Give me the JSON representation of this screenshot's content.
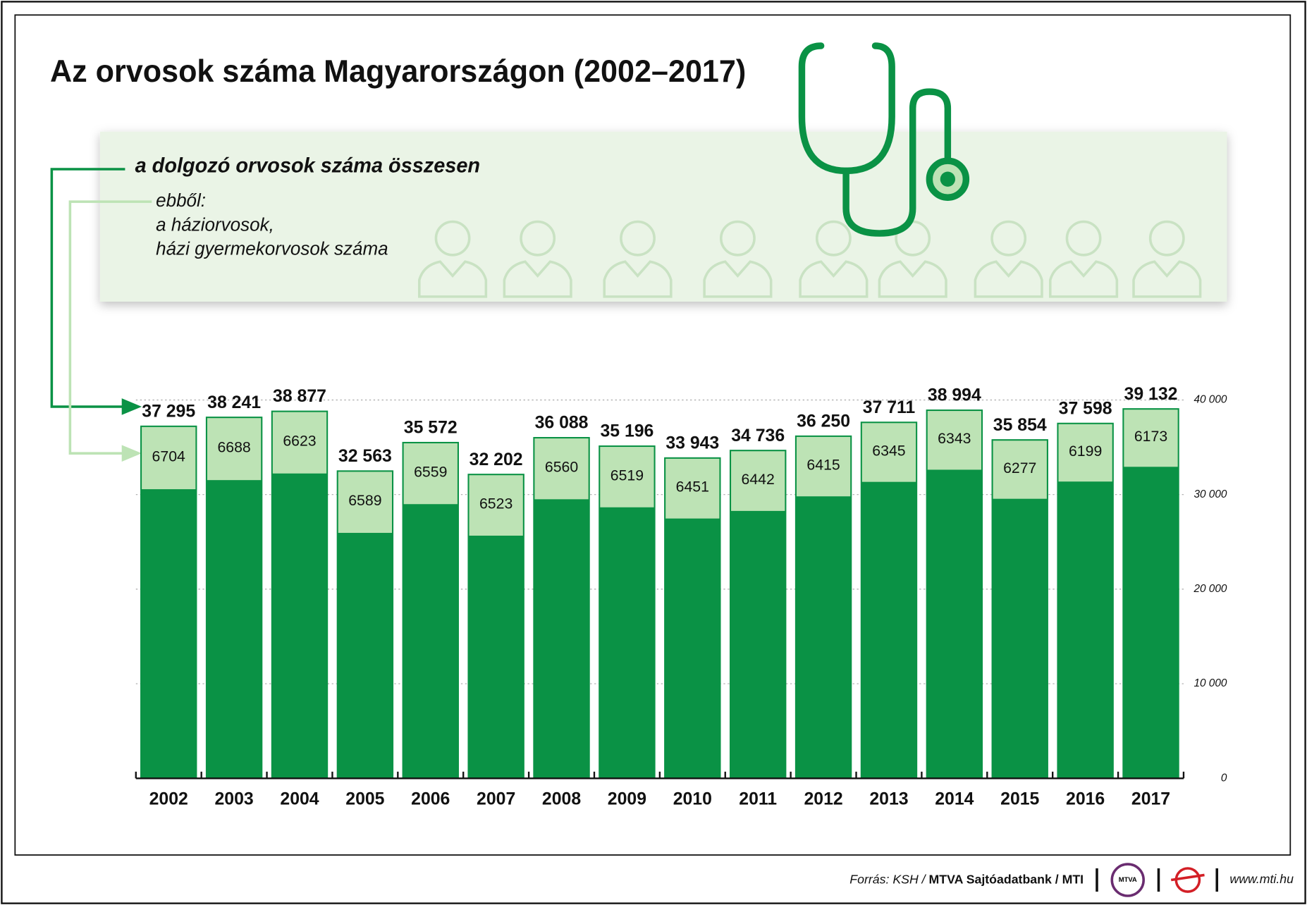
{
  "chart_data": {
    "type": "bar",
    "title": "Az orvosok száma Magyarországon (2002–2017)",
    "categories": [
      "2002",
      "2003",
      "2004",
      "2005",
      "2006",
      "2007",
      "2008",
      "2009",
      "2010",
      "2011",
      "2012",
      "2013",
      "2014",
      "2015",
      "2016",
      "2017"
    ],
    "series": [
      {
        "name": "a dolgozó orvosok száma összesen",
        "color": "#0a9245",
        "values": [
          37295,
          38241,
          38877,
          32563,
          35572,
          32202,
          36088,
          35196,
          33943,
          34736,
          36250,
          37711,
          38994,
          35854,
          37598,
          39132
        ],
        "value_labels": [
          "37 295",
          "38 241",
          "38 877",
          "32 563",
          "35 572",
          "32 202",
          "36 088",
          "35 196",
          "33 943",
          "34 736",
          "36 250",
          "37 711",
          "38 994",
          "35 854",
          "37 598",
          "39 132"
        ]
      },
      {
        "name": "ebből:\na háziorvosok,\nházi gyermekorvosok száma",
        "color": "#bde3b5",
        "values": [
          6704,
          6688,
          6623,
          6589,
          6559,
          6523,
          6560,
          6519,
          6451,
          6442,
          6415,
          6345,
          6343,
          6277,
          6199,
          6173
        ]
      }
    ],
    "ylim": [
      0,
      40000
    ],
    "yticks": [
      0,
      {
        "value": 10000,
        "label": "10 000"
      },
      {
        "value": 20000,
        "label": "20 000"
      },
      {
        "value": 30000,
        "label": "30 000"
      },
      {
        "value": 40000,
        "label": "40 000"
      }
    ],
    "grid": true
  },
  "footer": {
    "source_label": "Forrás: KSH /",
    "source": "MTVA Sajtóadatbank / MTI",
    "logo": "MTVA",
    "url": "www.mti.hu"
  }
}
